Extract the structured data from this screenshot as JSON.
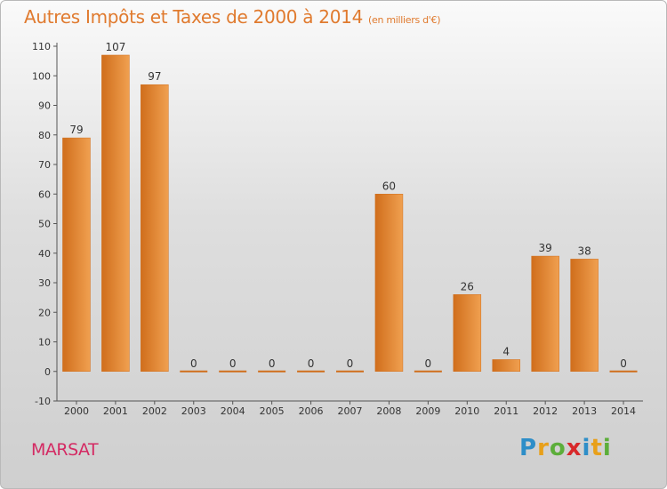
{
  "chart_data": {
    "type": "bar",
    "title": "Autres Impôts et Taxes de 2000 à 2014",
    "subtitle": "(en milliers d'€)",
    "categories": [
      "2000",
      "2001",
      "2002",
      "2003",
      "2004",
      "2005",
      "2006",
      "2007",
      "2008",
      "2009",
      "2010",
      "2011",
      "2012",
      "2013",
      "2014"
    ],
    "values": [
      79,
      107,
      97,
      0,
      0,
      0,
      0,
      0,
      60,
      0,
      26,
      4,
      39,
      38,
      0
    ],
    "xlabel": "",
    "ylabel": "",
    "ylim": [
      -10,
      110
    ],
    "yticks": [
      -10,
      0,
      10,
      20,
      30,
      40,
      50,
      60,
      70,
      80,
      90,
      100,
      110
    ],
    "grid": false,
    "bar_color": "#f0a050",
    "bar_color_dark": "#d06e1c"
  },
  "footer": {
    "place": "MARSAT",
    "logo_letters": [
      {
        "ch": "P",
        "color": "#2e8ec8"
      },
      {
        "ch": "r",
        "color": "#e8a01a"
      },
      {
        "ch": "o",
        "color": "#5cae3a"
      },
      {
        "ch": "x",
        "color": "#d8282a"
      },
      {
        "ch": "i",
        "color": "#2e8ec8"
      },
      {
        "ch": "t",
        "color": "#e8a01a"
      },
      {
        "ch": "i",
        "color": "#5cae3a"
      }
    ]
  }
}
